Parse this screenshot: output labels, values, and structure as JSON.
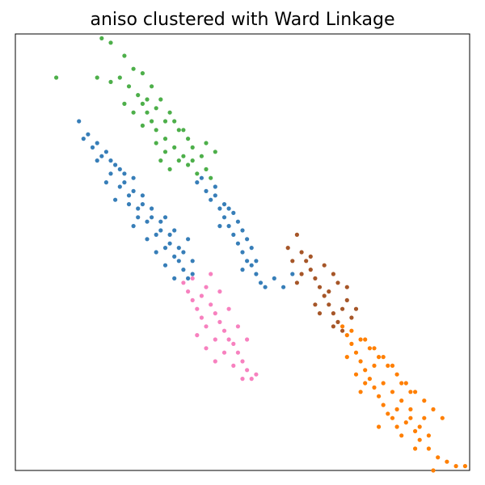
{
  "chart_data": {
    "type": "scatter",
    "title": "aniso clustered with Ward Linkage",
    "xlabel": "",
    "ylabel": "",
    "xticks": false,
    "yticks": false,
    "grid": false,
    "legend": false,
    "xlim": [
      0,
      1
    ],
    "ylim": [
      0,
      1
    ],
    "series": [
      {
        "color": "#377eb8",
        "points": [
          [
            0.14,
            0.8
          ],
          [
            0.16,
            0.77
          ],
          [
            0.18,
            0.75
          ],
          [
            0.2,
            0.73
          ],
          [
            0.21,
            0.71
          ],
          [
            0.23,
            0.69
          ],
          [
            0.24,
            0.66
          ],
          [
            0.26,
            0.64
          ],
          [
            0.28,
            0.61
          ],
          [
            0.3,
            0.58
          ],
          [
            0.32,
            0.55
          ],
          [
            0.34,
            0.52
          ],
          [
            0.35,
            0.49
          ],
          [
            0.37,
            0.46
          ],
          [
            0.38,
            0.44
          ],
          [
            0.15,
            0.76
          ],
          [
            0.17,
            0.74
          ],
          [
            0.19,
            0.72
          ],
          [
            0.22,
            0.7
          ],
          [
            0.24,
            0.68
          ],
          [
            0.25,
            0.63
          ],
          [
            0.27,
            0.6
          ],
          [
            0.29,
            0.57
          ],
          [
            0.31,
            0.54
          ],
          [
            0.33,
            0.51
          ],
          [
            0.36,
            0.48
          ],
          [
            0.39,
            0.45
          ],
          [
            0.2,
            0.66
          ],
          [
            0.22,
            0.62
          ],
          [
            0.26,
            0.56
          ],
          [
            0.29,
            0.53
          ],
          [
            0.31,
            0.5
          ],
          [
            0.33,
            0.47
          ],
          [
            0.35,
            0.44
          ],
          [
            0.28,
            0.63
          ],
          [
            0.3,
            0.6
          ],
          [
            0.32,
            0.57
          ],
          [
            0.34,
            0.54
          ],
          [
            0.36,
            0.51
          ],
          [
            0.21,
            0.68
          ],
          [
            0.23,
            0.65
          ],
          [
            0.25,
            0.61
          ],
          [
            0.27,
            0.58
          ],
          [
            0.37,
            0.5
          ],
          [
            0.39,
            0.48
          ],
          [
            0.18,
            0.71
          ],
          [
            0.26,
            0.67
          ],
          [
            0.33,
            0.58
          ],
          [
            0.35,
            0.55
          ],
          [
            0.38,
            0.53
          ],
          [
            0.4,
            0.66
          ],
          [
            0.42,
            0.64
          ],
          [
            0.43,
            0.62
          ],
          [
            0.45,
            0.6
          ],
          [
            0.46,
            0.58
          ],
          [
            0.47,
            0.56
          ],
          [
            0.48,
            0.54
          ],
          [
            0.49,
            0.52
          ],
          [
            0.5,
            0.5
          ],
          [
            0.51,
            0.48
          ],
          [
            0.52,
            0.47
          ],
          [
            0.53,
            0.45
          ],
          [
            0.54,
            0.43
          ],
          [
            0.55,
            0.42
          ],
          [
            0.57,
            0.44
          ],
          [
            0.59,
            0.42
          ],
          [
            0.61,
            0.45
          ],
          [
            0.41,
            0.67
          ],
          [
            0.44,
            0.63
          ],
          [
            0.46,
            0.61
          ],
          [
            0.48,
            0.59
          ],
          [
            0.5,
            0.55
          ],
          [
            0.52,
            0.51
          ],
          [
            0.53,
            0.48
          ],
          [
            0.44,
            0.65
          ],
          [
            0.47,
            0.6
          ],
          [
            0.49,
            0.57
          ],
          [
            0.51,
            0.53
          ],
          [
            0.45,
            0.56
          ],
          [
            0.5,
            0.46
          ]
        ]
      },
      {
        "color": "#4daf4a",
        "points": [
          [
            0.09,
            0.9
          ],
          [
            0.19,
            0.99
          ],
          [
            0.21,
            0.98
          ],
          [
            0.24,
            0.95
          ],
          [
            0.26,
            0.92
          ],
          [
            0.23,
            0.9
          ],
          [
            0.25,
            0.88
          ],
          [
            0.27,
            0.86
          ],
          [
            0.28,
            0.84
          ],
          [
            0.29,
            0.82
          ],
          [
            0.3,
            0.8
          ],
          [
            0.31,
            0.78
          ],
          [
            0.33,
            0.76
          ],
          [
            0.35,
            0.74
          ],
          [
            0.37,
            0.72
          ],
          [
            0.38,
            0.7
          ],
          [
            0.4,
            0.68
          ],
          [
            0.42,
            0.69
          ],
          [
            0.43,
            0.67
          ],
          [
            0.28,
            0.91
          ],
          [
            0.3,
            0.88
          ],
          [
            0.32,
            0.85
          ],
          [
            0.34,
            0.82
          ],
          [
            0.35,
            0.8
          ],
          [
            0.36,
            0.78
          ],
          [
            0.38,
            0.76
          ],
          [
            0.39,
            0.74
          ],
          [
            0.41,
            0.72
          ],
          [
            0.42,
            0.75
          ],
          [
            0.44,
            0.73
          ],
          [
            0.18,
            0.9
          ],
          [
            0.21,
            0.89
          ],
          [
            0.24,
            0.84
          ],
          [
            0.26,
            0.82
          ],
          [
            0.28,
            0.79
          ],
          [
            0.31,
            0.75
          ],
          [
            0.33,
            0.73
          ],
          [
            0.36,
            0.71
          ],
          [
            0.34,
            0.69
          ],
          [
            0.32,
            0.71
          ],
          [
            0.29,
            0.85
          ],
          [
            0.31,
            0.83
          ],
          [
            0.33,
            0.8
          ],
          [
            0.37,
            0.78
          ],
          [
            0.39,
            0.71
          ]
        ]
      },
      {
        "color": "#f781bf",
        "points": [
          [
            0.37,
            0.43
          ],
          [
            0.38,
            0.41
          ],
          [
            0.39,
            0.39
          ],
          [
            0.4,
            0.37
          ],
          [
            0.41,
            0.4
          ],
          [
            0.42,
            0.42
          ],
          [
            0.43,
            0.38
          ],
          [
            0.44,
            0.36
          ],
          [
            0.45,
            0.34
          ],
          [
            0.46,
            0.32
          ],
          [
            0.47,
            0.3
          ],
          [
            0.48,
            0.29
          ],
          [
            0.49,
            0.27
          ],
          [
            0.5,
            0.25
          ],
          [
            0.51,
            0.23
          ],
          [
            0.52,
            0.21
          ],
          [
            0.53,
            0.22
          ],
          [
            0.5,
            0.21
          ],
          [
            0.48,
            0.24
          ],
          [
            0.46,
            0.27
          ],
          [
            0.44,
            0.3
          ],
          [
            0.42,
            0.33
          ],
          [
            0.41,
            0.35
          ],
          [
            0.39,
            0.44
          ],
          [
            0.43,
            0.45
          ],
          [
            0.45,
            0.41
          ],
          [
            0.47,
            0.37
          ],
          [
            0.49,
            0.33
          ],
          [
            0.51,
            0.3
          ],
          [
            0.4,
            0.31
          ],
          [
            0.42,
            0.28
          ],
          [
            0.44,
            0.25
          ]
        ]
      },
      {
        "color": "#a65628",
        "points": [
          [
            0.6,
            0.51
          ],
          [
            0.62,
            0.54
          ],
          [
            0.63,
            0.5
          ],
          [
            0.64,
            0.48
          ],
          [
            0.65,
            0.46
          ],
          [
            0.66,
            0.44
          ],
          [
            0.67,
            0.42
          ],
          [
            0.68,
            0.4
          ],
          [
            0.69,
            0.38
          ],
          [
            0.7,
            0.36
          ],
          [
            0.71,
            0.34
          ],
          [
            0.72,
            0.37
          ],
          [
            0.73,
            0.39
          ],
          [
            0.74,
            0.35
          ],
          [
            0.72,
            0.32
          ],
          [
            0.68,
            0.47
          ],
          [
            0.7,
            0.45
          ],
          [
            0.71,
            0.43
          ],
          [
            0.69,
            0.41
          ],
          [
            0.67,
            0.36
          ],
          [
            0.66,
            0.38
          ],
          [
            0.65,
            0.49
          ],
          [
            0.63,
            0.45
          ],
          [
            0.61,
            0.48
          ],
          [
            0.7,
            0.33
          ],
          [
            0.73,
            0.42
          ],
          [
            0.75,
            0.37
          ],
          [
            0.62,
            0.43
          ]
        ]
      },
      {
        "color": "#ff7f00",
        "points": [
          [
            0.72,
            0.33
          ],
          [
            0.73,
            0.31
          ],
          [
            0.74,
            0.29
          ],
          [
            0.75,
            0.27
          ],
          [
            0.76,
            0.25
          ],
          [
            0.77,
            0.23
          ],
          [
            0.78,
            0.21
          ],
          [
            0.79,
            0.19
          ],
          [
            0.8,
            0.17
          ],
          [
            0.81,
            0.15
          ],
          [
            0.82,
            0.13
          ],
          [
            0.83,
            0.12
          ],
          [
            0.84,
            0.1
          ],
          [
            0.85,
            0.08
          ],
          [
            0.86,
            0.11
          ],
          [
            0.87,
            0.14
          ],
          [
            0.88,
            0.09
          ],
          [
            0.89,
            0.07
          ],
          [
            0.91,
            0.05
          ],
          [
            0.93,
            0.03
          ],
          [
            0.95,
            0.02
          ],
          [
            0.97,
            0.01
          ],
          [
            0.99,
            0.01
          ],
          [
            0.92,
            0.0
          ],
          [
            0.74,
            0.32
          ],
          [
            0.76,
            0.3
          ],
          [
            0.78,
            0.28
          ],
          [
            0.8,
            0.26
          ],
          [
            0.82,
            0.24
          ],
          [
            0.84,
            0.22
          ],
          [
            0.86,
            0.2
          ],
          [
            0.88,
            0.18
          ],
          [
            0.9,
            0.16
          ],
          [
            0.92,
            0.14
          ],
          [
            0.94,
            0.12
          ],
          [
            0.75,
            0.22
          ],
          [
            0.77,
            0.2
          ],
          [
            0.79,
            0.24
          ],
          [
            0.81,
            0.2
          ],
          [
            0.83,
            0.18
          ],
          [
            0.85,
            0.16
          ],
          [
            0.87,
            0.12
          ],
          [
            0.89,
            0.1
          ],
          [
            0.91,
            0.08
          ],
          [
            0.77,
            0.3
          ],
          [
            0.79,
            0.28
          ],
          [
            0.81,
            0.26
          ],
          [
            0.83,
            0.24
          ],
          [
            0.85,
            0.2
          ],
          [
            0.87,
            0.18
          ],
          [
            0.73,
            0.26
          ],
          [
            0.76,
            0.18
          ],
          [
            0.8,
            0.1
          ],
          [
            0.84,
            0.14
          ],
          [
            0.88,
            0.05
          ],
          [
            0.9,
            0.12
          ]
        ]
      }
    ]
  }
}
